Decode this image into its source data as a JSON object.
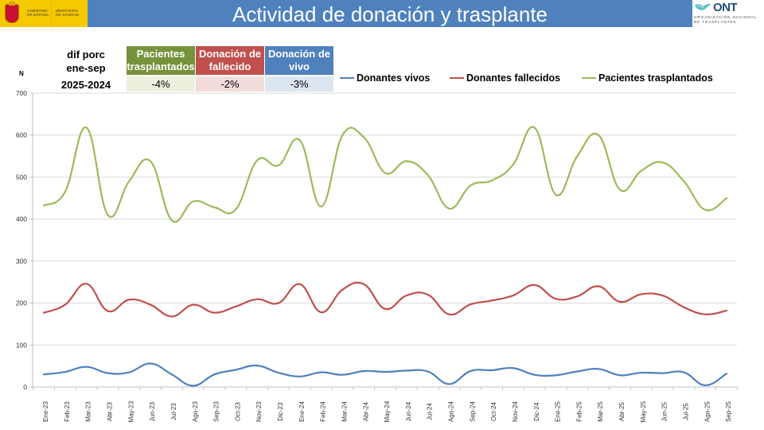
{
  "header": {
    "title": "Actividad de donación y trasplante",
    "left_logo": {
      "line1": "GOBIERNO",
      "line2": "DE ESPAÑA",
      "line3": "MINISTERIO",
      "line4": "DE SANIDAD"
    },
    "right_logo": {
      "name": "ONT",
      "sub1": "ORGANIZACIÓN NACIONAL",
      "sub2": "DE TRASPLANTES"
    }
  },
  "summary": {
    "label_line1": "dif porc",
    "label_line2": "ene-sep",
    "years": "2025-2024",
    "categories": [
      {
        "label": "Pacientes trasplantados",
        "value": "-4%",
        "header_color": "#76923c",
        "cell_color": "#ebf1de"
      },
      {
        "label": "Donación de fallecido",
        "value": "-2%",
        "header_color": "#c0504d",
        "cell_color": "#f2dcdb"
      },
      {
        "label": "Donación de vivo",
        "value": "-3%",
        "header_color": "#4f81bd",
        "cell_color": "#dce6f1"
      }
    ]
  },
  "chart_data": {
    "type": "line",
    "title": "",
    "xlabel": "",
    "ylabel": "N",
    "ylim": [
      0,
      700
    ],
    "yticks": [
      0,
      100,
      200,
      300,
      400,
      500,
      600,
      700
    ],
    "grid": true,
    "smooth": true,
    "legend_position": "top-right",
    "categories": [
      "Ene-23",
      "Feb-23",
      "Mar-23",
      "Abr-23",
      "May-23",
      "Jun-23",
      "Jul-23",
      "Ago-23",
      "Sep-23",
      "Oct-23",
      "Nov-23",
      "Dic-23",
      "Ene-24",
      "Feb-24",
      "Mar-24",
      "Abr-24",
      "May-24",
      "Jun-24",
      "Jul-24",
      "Ago-24",
      "Sep-24",
      "Oct-24",
      "Nov-24",
      "Dic-24",
      "Ene-25",
      "Feb-25",
      "Mar-25",
      "Abr-25",
      "May-25",
      "Jun-25",
      "Jul-25",
      "Ago-25",
      "Sep-25"
    ],
    "series": [
      {
        "name": "Donantes vivos",
        "color": "#4f81bd",
        "values": [
          30,
          36,
          48,
          33,
          35,
          56,
          30,
          3,
          30,
          41,
          51,
          34,
          25,
          35,
          29,
          38,
          36,
          39,
          37,
          7,
          38,
          40,
          45,
          29,
          28,
          37,
          43,
          28,
          34,
          33,
          35,
          4,
          32
        ]
      },
      {
        "name": "Donantes fallecidos",
        "color": "#c0504d",
        "values": [
          177,
          196,
          246,
          181,
          208,
          196,
          168,
          196,
          177,
          192,
          209,
          200,
          245,
          178,
          232,
          245,
          186,
          218,
          220,
          173,
          197,
          206,
          218,
          243,
          210,
          216,
          240,
          203,
          221,
          218,
          190,
          173,
          182
        ]
      },
      {
        "name": "Pacientes trasplantados",
        "color": "#9bbb59",
        "values": [
          432,
          465,
          618,
          410,
          490,
          538,
          397,
          442,
          428,
          423,
          540,
          528,
          588,
          430,
          600,
          595,
          510,
          538,
          505,
          425,
          480,
          492,
          530,
          618,
          458,
          550,
          600,
          470,
          515,
          535,
          490,
          422,
          450
        ]
      }
    ]
  }
}
